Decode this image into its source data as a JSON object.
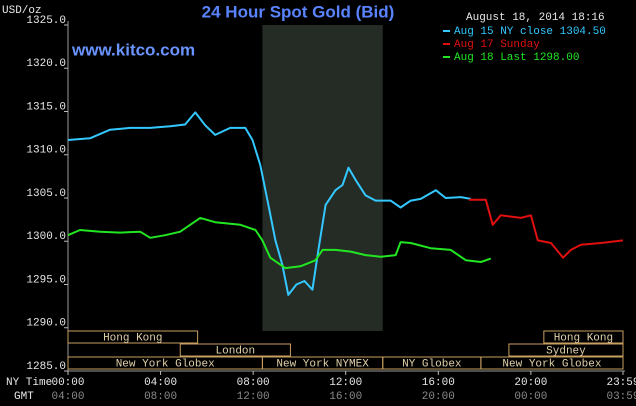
{
  "chart_data": {
    "type": "line",
    "title": "24 Hour Spot Gold (Bid)",
    "y_label": "USD/oz",
    "timestamp": "August 18, 2014 18:16",
    "watermark": "www.kitco.com",
    "x_label": "NY Time",
    "x2_label": "GMT",
    "xlim": [
      0,
      23.98
    ],
    "ylim": [
      1285,
      1325
    ],
    "yticks": [
      {
        "value": 1285,
        "label": "1285.0"
      },
      {
        "value": 1290,
        "label": "1290.0"
      },
      {
        "value": 1295,
        "label": "1295.0"
      },
      {
        "value": 1300,
        "label": "1300.0"
      },
      {
        "value": 1305,
        "label": "1305.0"
      },
      {
        "value": 1310,
        "label": "1310.0"
      },
      {
        "value": 1315,
        "label": "1315.0"
      },
      {
        "value": 1320,
        "label": "1320.0"
      },
      {
        "value": 1325,
        "label": "1325.0"
      }
    ],
    "xticks": [
      {
        "value": 0,
        "label": "00:00"
      },
      {
        "value": 4,
        "label": "04:00"
      },
      {
        "value": 8,
        "label": "08:00"
      },
      {
        "value": 12,
        "label": "12:00"
      },
      {
        "value": 16,
        "label": "16:00"
      },
      {
        "value": 20,
        "label": "20:00"
      },
      {
        "value": 23.98,
        "label": "23:59"
      }
    ],
    "x2ticks": [
      {
        "value": 0,
        "label": "04:00"
      },
      {
        "value": 4,
        "label": "08:00"
      },
      {
        "value": 8,
        "label": "12:00"
      },
      {
        "value": 12,
        "label": "16:00"
      },
      {
        "value": 16,
        "label": "20:00"
      },
      {
        "value": 20,
        "label": "00:00"
      },
      {
        "value": 23.98,
        "label": "03:59"
      }
    ],
    "shaded_range": [
      8.4,
      13.6
    ],
    "legend": "top-right",
    "series": [
      {
        "name": "Aug 15 NY close 1304.50",
        "color": "#33c8ff",
        "x": [
          0,
          0.95,
          1.82,
          2.68,
          3.55,
          4.42,
          5.06,
          5.5,
          5.93,
          6.36,
          7.01,
          7.66,
          7.97,
          8.31,
          8.66,
          8.96,
          9.26,
          9.52,
          9.87,
          10.22,
          10.56,
          10.82,
          11.13,
          11.56,
          11.86,
          12.12,
          12.42,
          12.86,
          13.29,
          13.94,
          14.37,
          14.81,
          15.24,
          15.89,
          16.32,
          16.97,
          17.4
        ],
        "values": [
          1311.7,
          1311.9,
          1312.9,
          1313.1,
          1313.1,
          1313.3,
          1313.5,
          1314.9,
          1313.4,
          1312.3,
          1313.1,
          1313.1,
          1311.7,
          1308.8,
          1304.2,
          1300.1,
          1297.3,
          1293.8,
          1295.0,
          1295.4,
          1294.4,
          1299.0,
          1304.2,
          1305.9,
          1306.5,
          1308.5,
          1307.1,
          1305.3,
          1304.7,
          1304.7,
          1303.9,
          1304.7,
          1304.9,
          1305.9,
          1305.0,
          1305.1,
          1304.9
        ]
      },
      {
        "name": "Aug 17 Sunday",
        "color": "#e01010",
        "x": [
          17.32,
          18.05,
          18.35,
          18.7,
          19.57,
          20.0,
          20.3,
          20.87,
          21.39,
          21.73,
          22.16,
          23.03,
          23.98
        ],
        "values": [
          1304.8,
          1304.8,
          1301.9,
          1303.0,
          1302.7,
          1303.0,
          1300.1,
          1299.8,
          1298.1,
          1299.0,
          1299.6,
          1299.8,
          1300.1
        ]
      },
      {
        "name": "Aug 18 Last 1298.00",
        "color": "#22e622",
        "x": [
          0,
          0.52,
          1.39,
          2.25,
          3.12,
          3.55,
          4.2,
          4.85,
          5.71,
          6.36,
          7.45,
          8.1,
          8.4,
          8.74,
          9.39,
          10.04,
          10.69,
          11.0,
          11.56,
          12.21,
          12.86,
          13.51,
          14.16,
          14.37,
          14.81,
          15.67,
          16.54,
          17.19,
          17.84,
          18.27
        ],
        "values": [
          1300.7,
          1301.3,
          1301.1,
          1301.0,
          1301.1,
          1300.4,
          1300.7,
          1301.1,
          1302.7,
          1302.2,
          1301.9,
          1301.3,
          1300.1,
          1298.1,
          1296.9,
          1297.1,
          1297.8,
          1299.0,
          1299.0,
          1298.8,
          1298.4,
          1298.2,
          1298.4,
          1299.9,
          1299.8,
          1299.2,
          1299.0,
          1297.8,
          1297.6,
          1298.0
        ]
      }
    ],
    "sessions": [
      {
        "label": "Hong Kong",
        "row": 0,
        "start": 0,
        "end": 5.6
      },
      {
        "label": "London",
        "row": 1,
        "start": 4.85,
        "end": 9.61
      },
      {
        "label": "New York Globex",
        "row": 2,
        "start": 0,
        "end": 8.4
      },
      {
        "label": "New York NYMEX",
        "row": 2,
        "start": 8.4,
        "end": 13.6
      },
      {
        "label": "NY Globex",
        "row": 2,
        "start": 13.6,
        "end": 17.84
      },
      {
        "label": "New York Globex",
        "row": 2,
        "start": 17.84,
        "end": 23.98
      },
      {
        "label": "Hong Kong",
        "row": 0,
        "start": 20.56,
        "end": 23.98
      },
      {
        "label": "Sydney",
        "row": 1,
        "start": 19.05,
        "end": 23.98
      }
    ]
  }
}
